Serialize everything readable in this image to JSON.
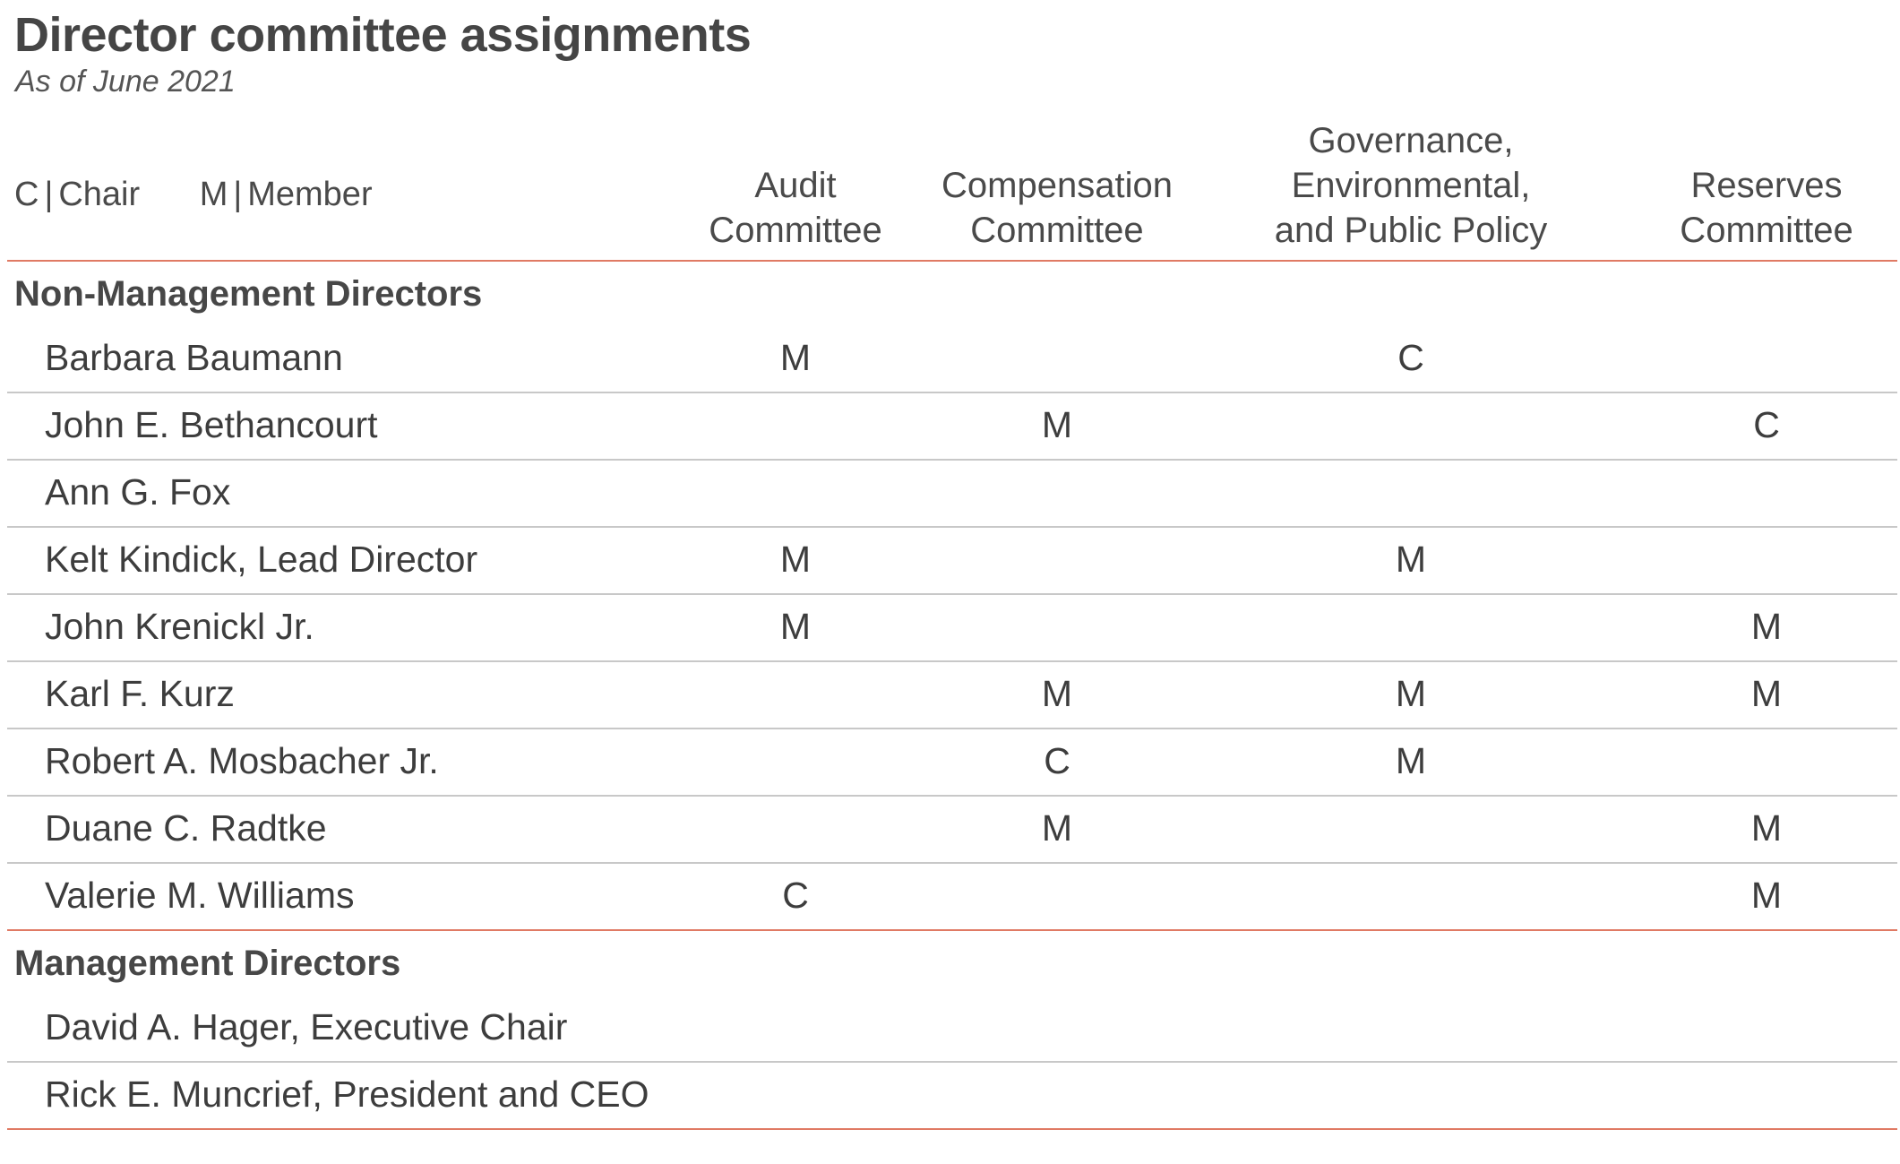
{
  "title": "Director committee assignments",
  "subtitle": "As of June 2021",
  "legend": {
    "chair_code": "C",
    "chair_label": "Chair",
    "member_code": "M",
    "member_label": "Member",
    "separator": "|"
  },
  "columns": [
    {
      "lines": [
        "Audit",
        "Committee"
      ]
    },
    {
      "lines": [
        "Compensation",
        "Committee"
      ]
    },
    {
      "lines": [
        "Governance,",
        "Environmental,",
        "and Public Policy"
      ]
    },
    {
      "lines": [
        "Reserves",
        "Committee"
      ]
    }
  ],
  "sections": [
    {
      "title": "Non-Management Directors",
      "rows": [
        {
          "name": "Barbara Baumann",
          "cells": [
            "M",
            "",
            "C",
            ""
          ]
        },
        {
          "name": "John E. Bethancourt",
          "cells": [
            "",
            "M",
            "",
            "C"
          ]
        },
        {
          "name": "Ann G. Fox",
          "cells": [
            "",
            "",
            "",
            ""
          ]
        },
        {
          "name": "Kelt Kindick, Lead Director",
          "cells": [
            "M",
            "",
            "M",
            ""
          ]
        },
        {
          "name": "John Krenickl Jr.",
          "cells": [
            "M",
            "",
            "",
            "M"
          ]
        },
        {
          "name": "Karl F. Kurz",
          "cells": [
            "",
            "M",
            "M",
            "M"
          ]
        },
        {
          "name": "Robert A. Mosbacher Jr.",
          "cells": [
            "",
            "C",
            "M",
            ""
          ]
        },
        {
          "name": "Duane C. Radtke",
          "cells": [
            "",
            "M",
            "",
            "M"
          ]
        },
        {
          "name": "Valerie M. Williams",
          "cells": [
            "C",
            "",
            "",
            "M"
          ]
        }
      ]
    },
    {
      "title": "Management Directors",
      "rows": [
        {
          "name": "David A. Hager, Executive Chair",
          "cells": [
            "",
            "",
            "",
            ""
          ]
        },
        {
          "name": "Rick E. Muncrief, President and CEO",
          "cells": [
            "",
            "",
            "",
            ""
          ]
        }
      ]
    }
  ],
  "colors": {
    "rule_accent": "#e07a64",
    "rule_light": "#c8c8c8",
    "text": "#3d3d3d"
  }
}
